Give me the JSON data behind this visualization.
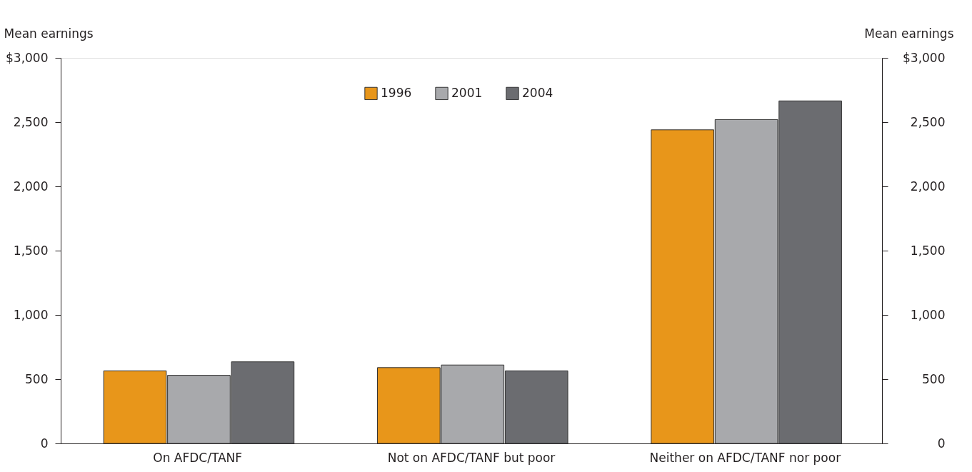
{
  "chart_data": {
    "type": "bar",
    "categories": [
      "On AFDC/TANF",
      "Not on AFDC/TANF but poor",
      "Neither on AFDC/TANF nor poor"
    ],
    "series": [
      {
        "name": "1996",
        "color": "#e8961a",
        "values": [
          565,
          590,
          2440
        ]
      },
      {
        "name": "2001",
        "color": "#a8a9ac",
        "values": [
          530,
          610,
          2520
        ]
      },
      {
        "name": "2004",
        "color": "#6b6c70",
        "values": [
          635,
          565,
          2665
        ]
      }
    ],
    "ylabel": "Mean earnings",
    "y2label": "Mean earnings",
    "ylim": [
      0,
      3000
    ],
    "yticks": [
      0,
      500,
      {
        "value": 1000,
        "label": "1,000"
      },
      {
        "value": 1500,
        "label": "1,500"
      },
      {
        "value": 2000,
        "label": "2,000"
      },
      {
        "value": 2500,
        "label": "2,500"
      },
      {
        "value": 3000,
        "label": "$3,000"
      }
    ],
    "y2lim": [
      0,
      3000
    ],
    "y2ticks": [
      0,
      500,
      {
        "value": 1000,
        "label": "1,000"
      },
      {
        "value": 1500,
        "label": "1,500"
      },
      {
        "value": 2000,
        "label": "2,000"
      },
      {
        "value": 2500,
        "label": "2,500"
      },
      {
        "value": 3000,
        "label": "$3,000"
      }
    ],
    "legend": "top",
    "grid": false
  }
}
